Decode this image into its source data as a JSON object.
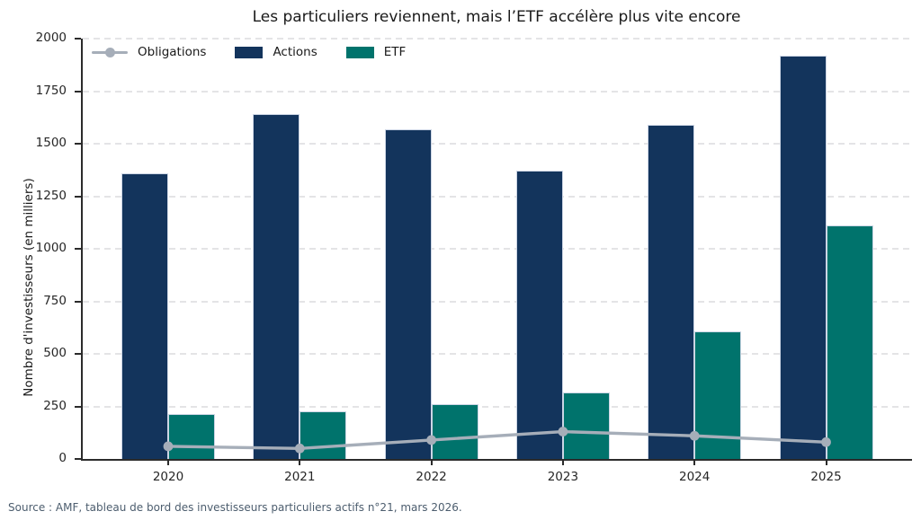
{
  "title": "Les particuliers reviennent, mais l’ETF accélère plus vite encore",
  "source": "Source : AMF, tableau de bord des investisseurs particuliers actifs n°21, mars 2026.",
  "chart_data": {
    "type": "bar",
    "subtype": "grouped-bars-with-line-overlay",
    "title": "Les particuliers reviennent, mais l’ETF accélère plus vite encore",
    "xlabel": "",
    "ylabel": "Nombre d'investisseurs (en milliers)",
    "categories": [
      "2020",
      "2021",
      "2022",
      "2023",
      "2024",
      "2025"
    ],
    "series": [
      {
        "name": "Obligations",
        "render": "line",
        "color": "#a6aeb9",
        "values": [
          60,
          50,
          90,
          130,
          110,
          80
        ]
      },
      {
        "name": "Actions",
        "render": "bar",
        "color": "#13345c",
        "values": [
          1360,
          1640,
          1570,
          1370,
          1590,
          1920
        ]
      },
      {
        "name": "ETF",
        "render": "bar",
        "color": "#00736c",
        "values": [
          215,
          225,
          260,
          315,
          605,
          1110
        ]
      }
    ],
    "ylim": [
      0,
      2000
    ],
    "ytick_step": 250,
    "grid": "horizontal dashed",
    "legend_position": "top-left inside plot"
  },
  "colors": {
    "obligations_line": "#a6aeb9",
    "actions_bar": "#13345c",
    "etf_bar": "#00736c",
    "grid": "#e4e4e6",
    "spine": "#2b2b2b",
    "title_text": "#1a1a1a",
    "source_text": "#4c5d6e",
    "background": "#ffffff"
  }
}
